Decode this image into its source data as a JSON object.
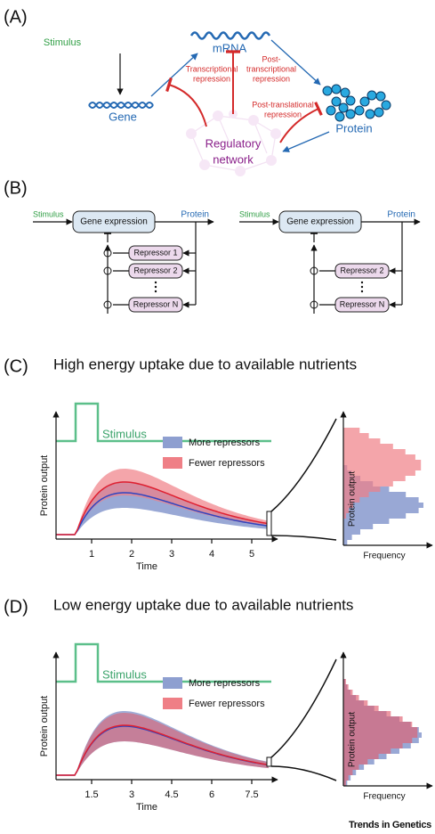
{
  "panel_a": {
    "label": "(A)",
    "stimulus": "Stimulus",
    "gene": "Gene",
    "mrna": "mRNA",
    "protein": "Protein",
    "network": [
      "Regulatory",
      "network"
    ],
    "transcriptional": [
      "Transcriptional",
      "repression"
    ],
    "post_transcriptional": [
      "Post-",
      "transcriptional",
      "repression"
    ],
    "post_translational": [
      "Post-translational",
      "repression"
    ]
  },
  "panel_b": {
    "label": "(B)",
    "left": {
      "stimulus": "Stimulus",
      "gene_expression": "Gene expression",
      "protein": "Protein",
      "repressors": [
        "Repressor 1",
        "Repressor 2",
        "Repressor N"
      ]
    },
    "right": {
      "stimulus": "Stimulus",
      "gene_expression": "Gene expression",
      "protein": "Protein",
      "repressors": [
        "Repressor 2",
        "Repressor N"
      ]
    }
  },
  "panel_c": {
    "label": "(C)",
    "title": "High energy uptake due to available nutrients",
    "stimulus": "Stimulus",
    "legend": [
      "More repressors",
      "Fewer repressors"
    ],
    "y_label": "Protein output",
    "x_label": "Time",
    "xticks": [
      1,
      2,
      3,
      4,
      5
    ],
    "hist_y_label": "Protein output",
    "hist_x_label": "Frequency"
  },
  "panel_d": {
    "label": "(D)",
    "title": "Low energy uptake due to available nutrients",
    "stimulus": "Stimulus",
    "legend": [
      "More repressors",
      "Fewer repressors"
    ],
    "y_label": "Protein output",
    "x_label": "Time",
    "xticks": [
      1.5,
      3,
      4.5,
      6,
      7.5
    ],
    "hist_y_label": "Protein output",
    "hist_x_label": "Frequency"
  },
  "footer": "Trends in Genetics"
}
